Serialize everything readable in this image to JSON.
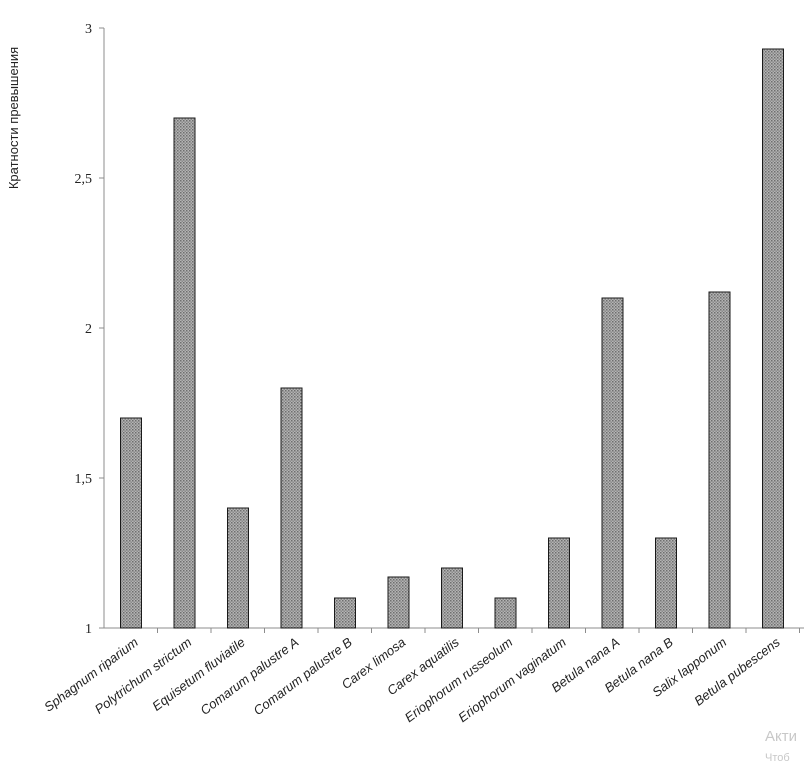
{
  "chart_data": {
    "type": "bar",
    "title": "",
    "xlabel": "",
    "ylabel": "Кратности превышения",
    "ylim": [
      1,
      3
    ],
    "yticks": [
      "1",
      "1,5",
      "2",
      "2,5",
      "3"
    ],
    "ytick_values": [
      1,
      1.5,
      2,
      2.5,
      3
    ],
    "grid": false,
    "bar_fill": "#9a9a9a",
    "bar_stroke": "#1a1a1a",
    "categories": [
      "Sphagnum riparium",
      "Polytrichum strictum",
      "Equisetum fluviatile",
      "Comarum palustre  A",
      "Comarum palustre  B",
      "Carex limosa",
      "Carex aquatilis",
      "Eriophorum russeolum",
      "Eriophorum vaginatum",
      "Betula nana A",
      "Betula nana B",
      "Salix lapponum",
      "Betula pubescens"
    ],
    "values": [
      1.7,
      2.7,
      1.4,
      1.8,
      1.1,
      1.17,
      1.2,
      1.1,
      1.3,
      2.1,
      1.3,
      2.12,
      2.93
    ]
  },
  "watermark": {
    "line1": "Акти",
    "line2": "Чтоб"
  }
}
